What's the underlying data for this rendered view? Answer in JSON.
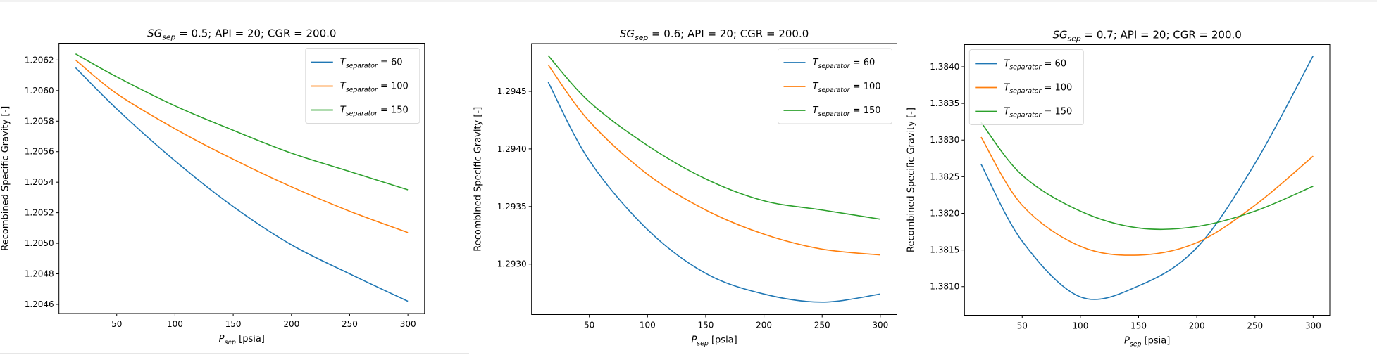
{
  "chart_data": [
    {
      "type": "line",
      "title": {
        "symbol": "SG",
        "subscript": "sep",
        "rest": " = 0.5;  API = 20;  CGR = 200.0"
      },
      "xlabel": {
        "symbol": "P",
        "subscript": "sep",
        "rest": " [psia]"
      },
      "ylabel": "Recombined Specific Gravity [-]",
      "xlim": [
        0.4,
        314.3
      ],
      "ylim": [
        1.20454,
        1.20631
      ],
      "xticks": [
        50,
        100,
        150,
        200,
        250,
        300
      ],
      "xtick_labels": [
        "50",
        "100",
        "150",
        "200",
        "250",
        "300"
      ],
      "yticks": [
        1.2046,
        1.2048,
        1.205,
        1.2052,
        1.2054,
        1.2056,
        1.2058,
        1.206,
        1.2062
      ],
      "ytick_labels": [
        "1.2046",
        "1.2048",
        "1.2050",
        "1.2052",
        "1.2054",
        "1.2056",
        "1.2058",
        "1.2060",
        "1.2062"
      ],
      "grid": false,
      "legend_position": "upper-right",
      "x": [
        14.7,
        50,
        100,
        150,
        200,
        250,
        300
      ],
      "series": [
        {
          "name": {
            "symbol": "T",
            "subscript": "separator",
            "rest": " = 60"
          },
          "color": "#1f77b4",
          "values": [
            1.20615,
            1.20588,
            1.20554,
            1.20524,
            1.20499,
            1.2048,
            1.20462
          ]
        },
        {
          "name": {
            "symbol": "T",
            "subscript": "separator",
            "rest": " = 100"
          },
          "color": "#ff7f0e",
          "values": [
            1.2062,
            1.20598,
            1.20575,
            1.20555,
            1.20537,
            1.20521,
            1.20507
          ]
        },
        {
          "name": {
            "symbol": "T",
            "subscript": "separator",
            "rest": " = 150"
          },
          "color": "#2ca02c",
          "values": [
            1.20624,
            1.20609,
            1.2059,
            1.20574,
            1.20559,
            1.20547,
            1.20535
          ]
        }
      ]
    },
    {
      "type": "line",
      "title": {
        "symbol": "SG",
        "subscript": "sep",
        "rest": " = 0.6;  API = 20;  CGR = 200.0"
      },
      "xlabel": {
        "symbol": "P",
        "subscript": "sep",
        "rest": " [psia]"
      },
      "ylabel": "Recombined Specific Gravity [-]",
      "xlim": [
        0.4,
        314.3
      ],
      "ylim": [
        1.292562,
        1.294915
      ],
      "xticks": [
        50,
        100,
        150,
        200,
        250,
        300
      ],
      "xtick_labels": [
        "50",
        "100",
        "150",
        "200",
        "250",
        "300"
      ],
      "yticks": [
        1.293,
        1.2935,
        1.294,
        1.2945
      ],
      "ytick_labels": [
        "1.2930",
        "1.2935",
        "1.2940",
        "1.2945"
      ],
      "grid": false,
      "legend_position": "upper-right",
      "x": [
        14.7,
        50,
        100,
        150,
        200,
        250,
        300
      ],
      "series": [
        {
          "name": {
            "symbol": "T",
            "subscript": "separator",
            "rest": " = 60"
          },
          "color": "#1f77b4",
          "values": [
            1.29458,
            1.2939,
            1.2933,
            1.29292,
            1.29274,
            1.29267,
            1.29274
          ]
        },
        {
          "name": {
            "symbol": "T",
            "subscript": "separator",
            "rest": " = 100"
          },
          "color": "#ff7f0e",
          "values": [
            1.29473,
            1.29424,
            1.29378,
            1.29347,
            1.29326,
            1.29313,
            1.29308
          ]
        },
        {
          "name": {
            "symbol": "T",
            "subscript": "separator",
            "rest": " = 150"
          },
          "color": "#2ca02c",
          "values": [
            1.29481,
            1.29441,
            1.29403,
            1.29374,
            1.29355,
            1.29347,
            1.29339
          ]
        }
      ]
    },
    {
      "type": "line",
      "title": {
        "symbol": "SG",
        "subscript": "sep",
        "rest": " = 0.7;  API = 20;  CGR = 200.0"
      },
      "xlabel": {
        "symbol": "P",
        "subscript": "sep",
        "rest": " [psia]"
      },
      "ylabel": "Recombined Specific Gravity [-]",
      "xlim": [
        0.4,
        314.3
      ],
      "ylim": [
        1.380609,
        1.384302
      ],
      "xticks": [
        50,
        100,
        150,
        200,
        250,
        300
      ],
      "xtick_labels": [
        "50",
        "100",
        "150",
        "200",
        "250",
        "300"
      ],
      "yticks": [
        1.381,
        1.3815,
        1.382,
        1.3825,
        1.383,
        1.3835,
        1.384
      ],
      "ytick_labels": [
        "1.3810",
        "1.3815",
        "1.3820",
        "1.3825",
        "1.3830",
        "1.3835",
        "1.3840"
      ],
      "grid": false,
      "legend_position": "upper-left",
      "x": [
        14.7,
        50,
        100,
        150,
        200,
        250,
        300
      ],
      "series": [
        {
          "name": {
            "symbol": "T",
            "subscript": "separator",
            "rest": " = 60"
          },
          "color": "#1f77b4",
          "values": [
            1.38267,
            1.38162,
            1.38086,
            1.38101,
            1.38153,
            1.38268,
            1.38415
          ]
        },
        {
          "name": {
            "symbol": "T",
            "subscript": "separator",
            "rest": " = 100"
          },
          "color": "#ff7f0e",
          "values": [
            1.38304,
            1.38211,
            1.38155,
            1.38143,
            1.3816,
            1.38211,
            1.38278
          ]
        },
        {
          "name": {
            "symbol": "T",
            "subscript": "separator",
            "rest": " = 150"
          },
          "color": "#2ca02c",
          "values": [
            1.38324,
            1.38252,
            1.38203,
            1.3818,
            1.38182,
            1.38203,
            1.38237
          ]
        }
      ]
    }
  ]
}
